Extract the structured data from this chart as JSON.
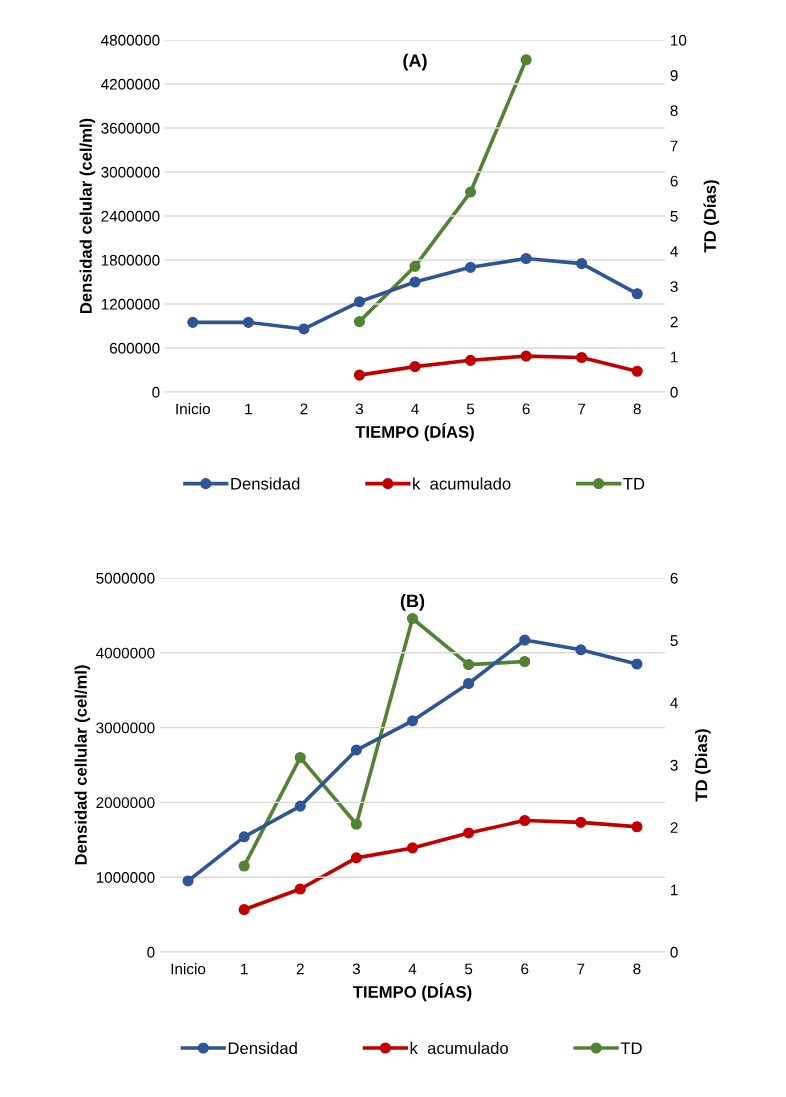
{
  "chart_data": [
    {
      "type": "line",
      "title": "(A)",
      "xlabel": "TIEMPO (DÍAS)",
      "ylabel": "Densidad celular (cel/ml)",
      "y2label": "TD (Días)",
      "categories": [
        "Inicio",
        "1",
        "2",
        "3",
        "4",
        "5",
        "6",
        "7",
        "8"
      ],
      "series": [
        {
          "name": "Densidad",
          "color": "#2f5597",
          "values": [
            950000,
            950000,
            860000,
            1230000,
            1500000,
            1700000,
            1820000,
            1750000,
            1340000
          ]
        },
        {
          "name": "k  acumulado",
          "color": "#c00000",
          "axis": "y2",
          "values": [
            null,
            null,
            null,
            0.48,
            0.72,
            0.9,
            1.02,
            0.98,
            0.59
          ]
        },
        {
          "name": "TD",
          "color": "#548235",
          "axis": "y2",
          "values": [
            null,
            null,
            null,
            2.0,
            3.57,
            5.68,
            9.44,
            null,
            null
          ]
        }
      ],
      "ylim": [
        0,
        4800000
      ],
      "yticks": [
        0,
        600000,
        1200000,
        1800000,
        2400000,
        3000000,
        3600000,
        4200000,
        4800000
      ],
      "y2lim": [
        0,
        10
      ],
      "y2ticks": [
        0,
        1,
        2,
        3,
        4,
        5,
        6,
        7,
        8,
        9,
        10
      ],
      "grid": "y",
      "legend": "bottom",
      "marker": "circle",
      "line_style": "solid"
    },
    {
      "type": "line",
      "title": "(B)",
      "xlabel": "TIEMPO (DÍAS)",
      "ylabel": "Densidad cellular (cel/ml)",
      "y2label": "TD (Dias)",
      "categories": [
        "Inicio",
        "1",
        "2",
        "3",
        "4",
        "5",
        "6",
        "7",
        "8"
      ],
      "series": [
        {
          "name": "Densidad",
          "color": "#2f5597",
          "values": [
            950000,
            1540000,
            1950000,
            2700000,
            3090000,
            3590000,
            4170000,
            4040000,
            3850000
          ]
        },
        {
          "name": "k  acumulado",
          "color": "#c00000",
          "axis": "y2",
          "values": [
            null,
            0.68,
            1.01,
            1.51,
            1.67,
            1.91,
            2.11,
            2.08,
            2.01
          ]
        },
        {
          "name": "TD",
          "color": "#548235",
          "axis": "y2",
          "values": [
            null,
            1.38,
            3.12,
            2.05,
            5.35,
            4.61,
            4.66,
            null,
            null
          ]
        }
      ],
      "ylim": [
        0,
        5000000
      ],
      "yticks": [
        0,
        1000000,
        2000000,
        3000000,
        4000000,
        5000000
      ],
      "y2lim": [
        0,
        6
      ],
      "y2ticks": [
        0,
        1,
        2,
        3,
        4,
        5,
        6
      ],
      "grid": "y",
      "legend": "bottom",
      "marker": "circle",
      "line_style": "solid"
    }
  ]
}
